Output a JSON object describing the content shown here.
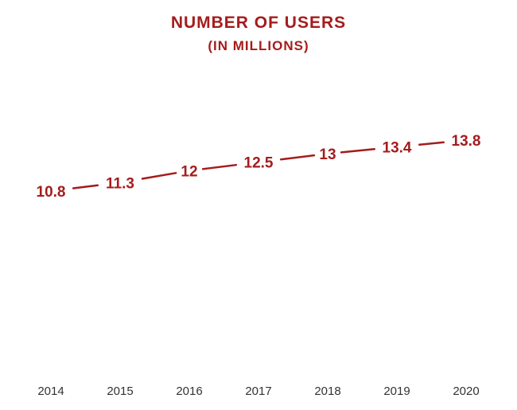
{
  "chart_data": {
    "type": "line",
    "title": "NUMBER OF USERS",
    "subtitle": "(IN MILLIONS)",
    "categories": [
      "2014",
      "2015",
      "2016",
      "2017",
      "2018",
      "2019",
      "2020"
    ],
    "values": [
      10.8,
      11.3,
      12,
      12.5,
      13,
      13.4,
      13.8
    ],
    "value_labels": [
      "10.8",
      "11.3",
      "12",
      "12.5",
      "13",
      "13.4",
      "13.8"
    ],
    "xlabel": "",
    "ylabel": "",
    "grid": false,
    "legend": "none",
    "colors": {
      "accent": "#a51c1c",
      "stem": "#555555",
      "axis_text": "#333333"
    }
  }
}
